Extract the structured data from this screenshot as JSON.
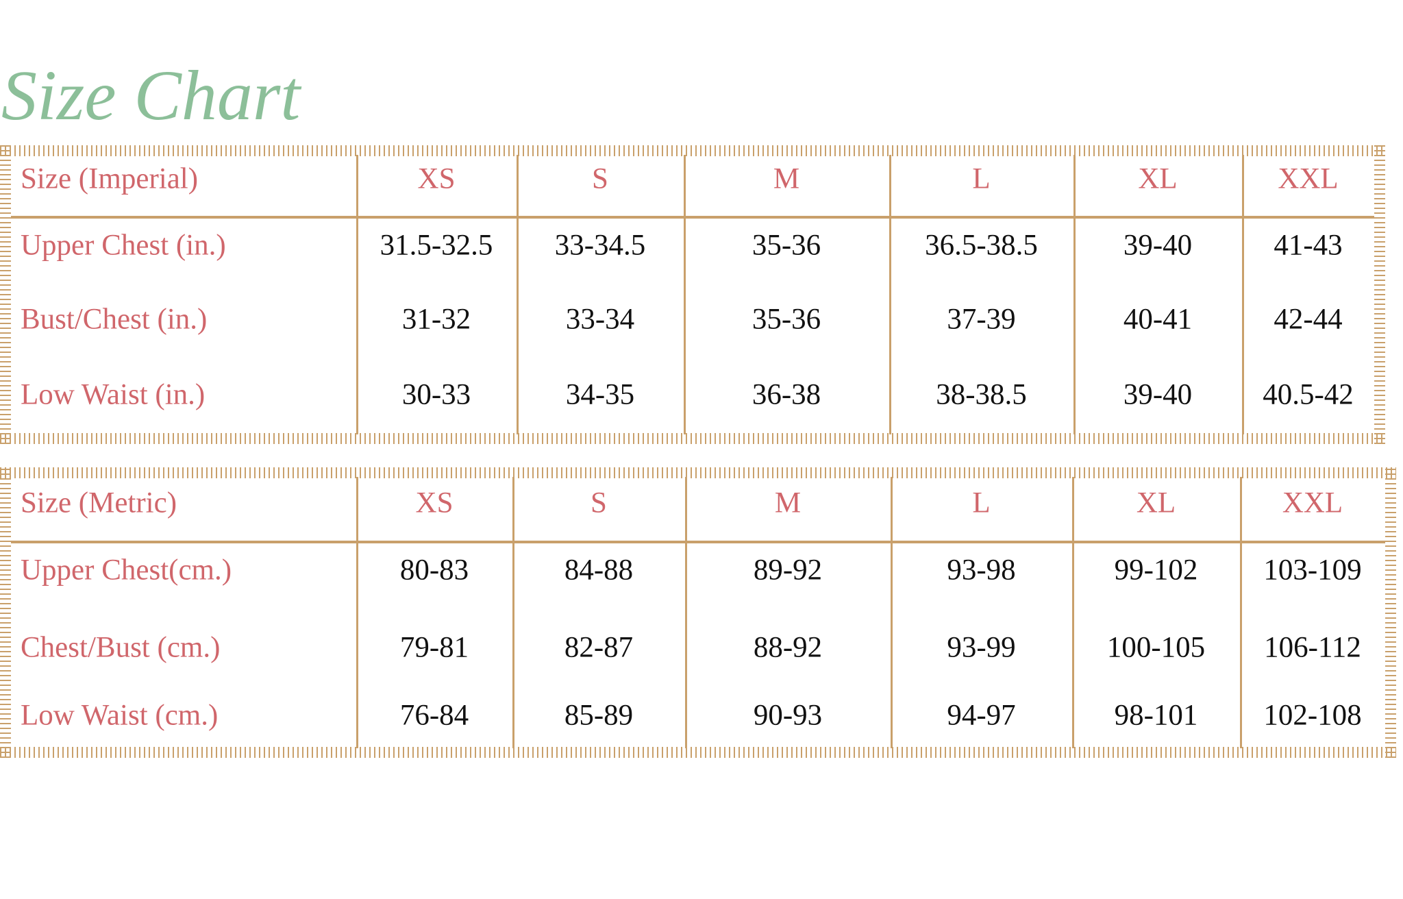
{
  "title": "Size Chart",
  "tables": [
    {
      "header": [
        "Size (Imperial)",
        "XS",
        "S",
        "M",
        "L",
        "XL",
        "XXL"
      ],
      "rows": [
        [
          "Upper Chest (in.)",
          "31.5-32.5",
          "33-34.5",
          "35-36",
          "36.5-38.5",
          "39-40",
          "41-43"
        ],
        [
          "Bust/Chest (in.)",
          "31-32",
          "33-34",
          "35-36",
          "37-39",
          "40-41",
          "42-44"
        ],
        [
          "Low Waist (in.)",
          "30-33",
          "34-35",
          "36-38",
          "38-38.5",
          "39-40",
          "40.5-42"
        ]
      ]
    },
    {
      "header": [
        "Size (Metric)",
        "XS",
        "S",
        "M",
        "L",
        "XL",
        "XXL"
      ],
      "rows": [
        [
          "Upper Chest(cm.)",
          "80-83",
          "84-88",
          "89-92",
          "93-98",
          "99-102",
          "103-109"
        ],
        [
          "Chest/Bust (cm.)",
          "79-81",
          "82-87",
          "88-92",
          "93-99",
          "100-105",
          "106-112"
        ],
        [
          "Low Waist (cm.)",
          "76-84",
          "85-89",
          "90-93",
          "94-97",
          "98-101",
          "102-108"
        ]
      ]
    }
  ]
}
